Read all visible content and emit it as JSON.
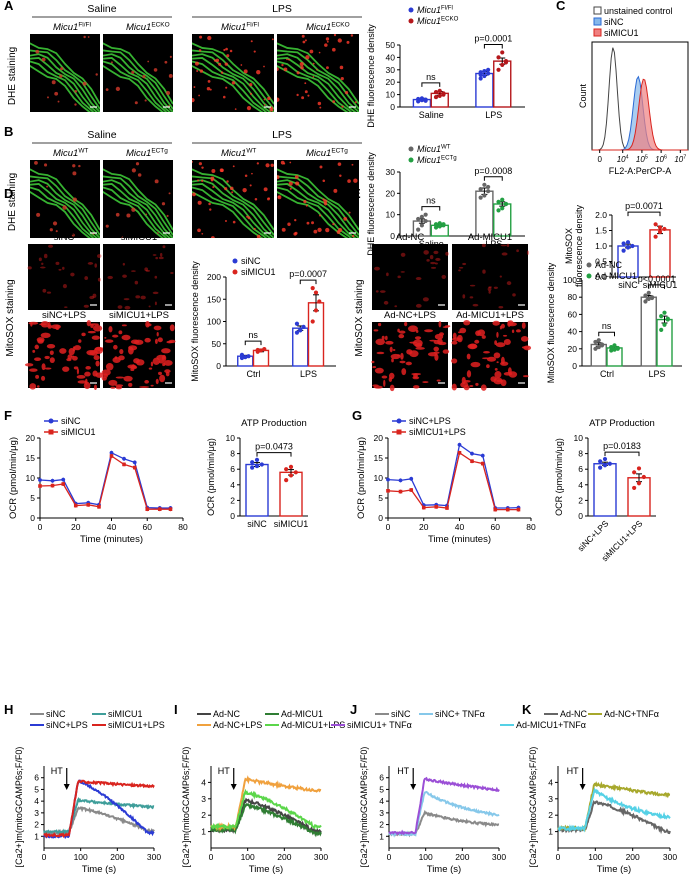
{
  "panels": {
    "A": {
      "letter": "A",
      "row_label": "DHE staining",
      "group_left": "Saline",
      "group_right": "LPS",
      "images": [
        {
          "gene": "Micu1",
          "sup": "Fl/Fl"
        },
        {
          "gene": "Micu1",
          "sup": "ECKO"
        },
        {
          "gene": "Micu1",
          "sup": "Fl/Fl"
        },
        {
          "gene": "Micu1",
          "sup": "ECKO"
        }
      ]
    },
    "B": {
      "letter": "B",
      "row_label": "DHE staining",
      "group_left": "Saline",
      "group_right": "LPS",
      "images": [
        {
          "gene": "Micu1",
          "sup": "WT"
        },
        {
          "gene": "Micu1",
          "sup": "ECTg"
        },
        {
          "gene": "Micu1",
          "sup": "WT"
        },
        {
          "gene": "Micu1",
          "sup": "ECTg"
        }
      ]
    },
    "C": {
      "letter": "C"
    },
    "D": {
      "letter": "D",
      "row_label": "MitoSOX staining",
      "images": [
        "siNC",
        "siMICU1",
        "siNC+LPS",
        "siMICU1+LPS"
      ]
    },
    "E": {
      "letter": "E",
      "row_label": "MitoSOX staining",
      "images": [
        "Ad-NC",
        "Ad-MICU1",
        "Ad-NC+LPS",
        "Ad-MICU1+LPS"
      ]
    },
    "F": {
      "letter": "F"
    },
    "G": {
      "letter": "G"
    },
    "H": {
      "letter": "H"
    },
    "I": {
      "letter": "I"
    },
    "J": {
      "letter": "J"
    },
    "K": {
      "letter": "K"
    }
  },
  "colors": {
    "blue": "#2b3bd4",
    "red": "#d9241e",
    "dark_red": "#b5171b",
    "green": "#23a043",
    "gray": "#8a8a8a",
    "darkgray": "#444444",
    "orange": "#f0a13e",
    "light_green": "#5bd64a",
    "teal": "#3f9e9a",
    "lightblue": "#86c8ea",
    "purple": "#9b4fd6",
    "olive": "#a7a82c",
    "cyan": "#55d1e6",
    "dark_green": "#2f7d33"
  },
  "chart_data": [
    {
      "id": "A_bar",
      "type": "bar",
      "ylabel": "DHE fluorescence density",
      "categories": [
        "Saline",
        "LPS"
      ],
      "ylim": [
        0,
        50
      ],
      "yticks": [
        0,
        10,
        20,
        30,
        40,
        50
      ],
      "series": [
        {
          "name": "Micu1",
          "sup": "Fl/Fl",
          "color": "#2b3bd4",
          "values": [
            6,
            27
          ],
          "errors": [
            1,
            1.5
          ],
          "points": [
            [
              4.5,
              5.5,
              6,
              6.5,
              7,
              5
            ],
            [
              23,
              25,
              27,
              28,
              29,
              30,
              26
            ]
          ]
        },
        {
          "name": "Micu1",
          "sup": "ECKO",
          "color": "#b5171b",
          "values": [
            11,
            37
          ],
          "errors": [
            1.5,
            2.5
          ],
          "points": [
            [
              8,
              9,
              11,
              12,
              13,
              10
            ],
            [
              30,
              34,
              37,
              40,
              44,
              36
            ]
          ]
        }
      ],
      "comparisons": [
        {
          "label": "ns",
          "group": 0
        },
        {
          "label": "p=0.0001",
          "group": 1
        }
      ]
    },
    {
      "id": "B_bar",
      "type": "bar",
      "ylabel": "DHE fluorescence density",
      "categories": [
        "Saline",
        "LPS"
      ],
      "ylim": [
        0,
        30
      ],
      "yticks": [
        0,
        10,
        20,
        30
      ],
      "series": [
        {
          "name": "Micu1",
          "sup": "WT",
          "color": "#666666",
          "values": [
            7,
            21
          ],
          "errors": [
            1,
            1.5
          ],
          "points": [
            [
              3,
              5,
              7,
              8,
              9,
              10
            ],
            [
              18,
              19,
              21,
              22,
              24,
              23
            ]
          ]
        },
        {
          "name": "Micu1",
          "sup": "ECTg",
          "color": "#23a043",
          "values": [
            5,
            15
          ],
          "errors": [
            0.5,
            1
          ],
          "points": [
            [
              4,
              4.5,
              5,
              5.5,
              6,
              5.5
            ],
            [
              12,
              13,
              15,
              16,
              17,
              15
            ]
          ]
        }
      ],
      "comparisons": [
        {
          "label": "ns",
          "group": 0
        },
        {
          "label": "p=0.0008",
          "group": 1
        }
      ]
    },
    {
      "id": "C_hist",
      "type": "area",
      "xlabel": "FL2-A:PerCP-A",
      "ylabel": "Count",
      "xticks": [
        "0",
        "10^4",
        "10^5",
        "10^6",
        "10^7"
      ],
      "series": [
        {
          "name": "unstained control",
          "color": "#444444",
          "fill": "none",
          "peak": 0.22,
          "width": 0.06,
          "height": 0.95
        },
        {
          "name": "siNC",
          "color": "#2b6ad4",
          "fill": "#86b8ea",
          "peak": 0.48,
          "width": 0.07,
          "height": 0.68
        },
        {
          "name": "siMICU1",
          "color": "#d9241e",
          "fill": "#f08080",
          "peak": 0.54,
          "width": 0.075,
          "height": 0.66
        }
      ]
    },
    {
      "id": "C_bar",
      "type": "bar",
      "ylabel": "MitoSOX\nfluorescence density",
      "categories": [
        "siNC",
        "siMICU1"
      ],
      "ylim": [
        0,
        2.0
      ],
      "yticks": [
        0,
        0.5,
        1.0,
        1.5,
        2.0
      ],
      "series": [
        {
          "name": "",
          "color": "#2b3bd4",
          "values": [
            1.0,
            1.52
          ],
          "errors": [
            0.06,
            0.12
          ],
          "points": [
            [
              0.85,
              0.95,
              1.0,
              1.08,
              1.12
            ],
            [
              1.3,
              1.45,
              1.55,
              1.7,
              1.6
            ]
          ]
        }
      ],
      "colors_by_category": [
        "#2b3bd4",
        "#d9241e"
      ],
      "comparisons": [
        {
          "label": "p=0.0071",
          "group": "all"
        }
      ]
    },
    {
      "id": "D_bar",
      "type": "bar",
      "ylabel": "MitoSOX fluorescence density",
      "categories": [
        "Ctrl",
        "LPS"
      ],
      "ylim": [
        0,
        200
      ],
      "yticks": [
        0,
        50,
        100,
        150,
        200
      ],
      "series": [
        {
          "name": "siNC",
          "color": "#2b3bd4",
          "values": [
            22,
            85
          ],
          "errors": [
            2,
            5
          ],
          "points": [
            [
              18,
              20,
              22,
              25
            ],
            [
              75,
              80,
              88,
              95,
              82
            ]
          ]
        },
        {
          "name": "siMICU1",
          "color": "#d9241e",
          "values": [
            35,
            142
          ],
          "errors": [
            3,
            18
          ],
          "points": [
            [
              32,
              35,
              38,
              36
            ],
            [
              100,
              125,
              145,
              175,
              165
            ]
          ]
        }
      ],
      "comparisons": [
        {
          "label": "ns",
          "group": 0
        },
        {
          "label": "p=0.0007",
          "group": 1
        }
      ]
    },
    {
      "id": "E_bar",
      "type": "bar",
      "ylabel": "MitoSOX fluorescence density",
      "categories": [
        "Ctrl",
        "LPS"
      ],
      "ylim": [
        0,
        100
      ],
      "yticks": [
        0,
        20,
        40,
        60,
        80,
        100
      ],
      "series": [
        {
          "name": "Ad-NC",
          "color": "#666666",
          "values": [
            25,
            80
          ],
          "errors": [
            2,
            2
          ],
          "points": [
            [
              20,
              22,
              25,
              28,
              30,
              24
            ],
            [
              75,
              78,
              80,
              82,
              85,
              79
            ]
          ]
        },
        {
          "name": "Ad-MICU1",
          "color": "#23a043",
          "values": [
            21,
            54
          ],
          "errors": [
            1.5,
            4
          ],
          "points": [
            [
              18,
              19,
              21,
              22,
              24,
              20
            ],
            [
              42,
              48,
              54,
              58,
              62,
              55
            ]
          ]
        }
      ],
      "comparisons": [
        {
          "label": "ns",
          "group": 0
        },
        {
          "label": "p<0.0001",
          "group": 1
        }
      ]
    },
    {
      "id": "F_line",
      "type": "line",
      "xlabel": "Time (minutes)",
      "ylabel": "OCR (pmol/min/μg)",
      "xlim": [
        0,
        80
      ],
      "ylim": [
        0,
        20
      ],
      "xticks": [
        0,
        20,
        40,
        60,
        80
      ],
      "yticks": [
        0,
        5,
        10,
        15,
        20
      ],
      "x": [
        0,
        7,
        13,
        20,
        27,
        33,
        40,
        47,
        53,
        60,
        67,
        73
      ],
      "series": [
        {
          "name": "siNC",
          "color": "#2b3bd4",
          "marker": "circle",
          "values": [
            9.5,
            9.3,
            9.6,
            3.6,
            3.8,
            3.3,
            16.3,
            14.8,
            13.9,
            2.6,
            2.5,
            2.5
          ]
        },
        {
          "name": "siMICU1",
          "color": "#d9241e",
          "marker": "square",
          "values": [
            8.0,
            8.1,
            8.5,
            3.1,
            3.3,
            2.8,
            15.5,
            13.4,
            12.6,
            2.2,
            2.2,
            2.2
          ]
        }
      ]
    },
    {
      "id": "F_bar",
      "type": "bar",
      "title": "ATP Production",
      "ylabel": "OCR (pmol/min/μg)",
      "categories": [
        "siNC",
        "siMICU1"
      ],
      "ylim": [
        0,
        10
      ],
      "yticks": [
        0,
        2,
        4,
        6,
        8,
        10
      ],
      "series": [
        {
          "name": "",
          "color": "#2b3bd4",
          "values": [
            6.6,
            5.6
          ],
          "errors": [
            0.25,
            0.35
          ],
          "points": [
            [
              6.2,
              6.4,
              6.6,
              6.9,
              7.2
            ],
            [
              4.6,
              5.2,
              5.6,
              6.0,
              6.3
            ]
          ]
        }
      ],
      "colors_by_category": [
        "#2b3bd4",
        "#d9241e"
      ],
      "comparisons": [
        {
          "label": "p=0.0473",
          "group": "all"
        }
      ]
    },
    {
      "id": "G_line",
      "type": "line",
      "xlabel": "Time (minutes)",
      "ylabel": "OCR (pmol/min/μg)",
      "xlim": [
        0,
        80
      ],
      "ylim": [
        0,
        20
      ],
      "xticks": [
        0,
        20,
        40,
        60,
        80
      ],
      "yticks": [
        0,
        5,
        10,
        15,
        20
      ],
      "x": [
        0,
        7,
        13,
        20,
        27,
        33,
        40,
        47,
        53,
        60,
        67,
        73
      ],
      "series": [
        {
          "name": "siNC+LPS",
          "color": "#2b3bd4",
          "marker": "circle",
          "values": [
            9.6,
            9.4,
            9.8,
            3.2,
            3.3,
            3.1,
            18.3,
            16.1,
            15.6,
            2.5,
            2.5,
            2.6
          ]
        },
        {
          "name": "siMICU1+LPS",
          "color": "#d9241e",
          "marker": "square",
          "values": [
            6.8,
            6.6,
            7.0,
            2.6,
            2.8,
            2.5,
            16.3,
            14.2,
            13.6,
            2.1,
            2.1,
            2.1
          ]
        }
      ]
    },
    {
      "id": "G_bar",
      "type": "bar",
      "title": "ATP Production",
      "ylabel": "OCR (pmol/min/μg)",
      "categories": [
        "siNC+LPS",
        "siMICU1+LPS"
      ],
      "ylim": [
        0,
        10
      ],
      "yticks": [
        0,
        2,
        4,
        6,
        8,
        10
      ],
      "series": [
        {
          "name": "",
          "color": "#2b3bd4",
          "values": [
            6.7,
            4.9
          ],
          "errors": [
            0.2,
            0.5
          ],
          "points": [
            [
              6.2,
              6.5,
              6.7,
              7.0,
              7.3
            ],
            [
              3.6,
              4.2,
              5.0,
              5.6,
              6.1
            ]
          ]
        }
      ],
      "colors_by_category": [
        "#2b3bd4",
        "#d9241e"
      ],
      "comparisons": [
        {
          "label": "p=0.0183",
          "group": "all"
        }
      ]
    },
    {
      "id": "H_trace",
      "type": "line",
      "xlabel": "Time (s)",
      "ylabel": "[Ca2+]m(mitoGCAMP6s;F/F0)",
      "xlim": [
        0,
        300
      ],
      "ylim": [
        0,
        7
      ],
      "xticks": [
        0,
        100,
        200,
        300
      ],
      "yticks": [
        1,
        2,
        3,
        4,
        5,
        6
      ],
      "annotation": "HT",
      "series": [
        {
          "name": "siNC",
          "color": "#8a8a8a",
          "base": 1.3,
          "peak": 3.4,
          "end": 1.5,
          "rise": 68,
          "decay": "fast"
        },
        {
          "name": "siMICU1",
          "color": "#3f9e9a",
          "base": 1.4,
          "peak": 4.1,
          "end": 2.5,
          "rise": 68,
          "decay": "slow"
        },
        {
          "name": "siNC+LPS",
          "color": "#2b3bd4",
          "base": 1.0,
          "peak": 5.7,
          "end": 1.3,
          "rise": 68,
          "decay": "fast"
        },
        {
          "name": "siMICU1+LPS",
          "color": "#d9241e",
          "base": 1.1,
          "peak": 5.7,
          "end": 4.6,
          "rise": 68,
          "decay": "slow"
        }
      ]
    },
    {
      "id": "I_trace",
      "type": "line",
      "xlabel": "Time (s)",
      "ylabel": "[Ca2+]m(mitoGCAMP6s;F/F0)",
      "xlim": [
        0,
        300
      ],
      "ylim": [
        0,
        5
      ],
      "xticks": [
        0,
        100,
        200,
        300
      ],
      "yticks": [
        1,
        2,
        3,
        4
      ],
      "annotation": "HT",
      "series": [
        {
          "name": "Ad-NC",
          "color": "#444444",
          "base": 1.1,
          "peak": 2.9,
          "end": 1.0,
          "rise": 68,
          "decay": "fast"
        },
        {
          "name": "Ad-MICU1",
          "color": "#2f7d33",
          "base": 1.1,
          "peak": 2.6,
          "end": 0.9,
          "rise": 68,
          "decay": "fast"
        },
        {
          "name": "Ad-NC+LPS",
          "color": "#f0a13e",
          "base": 1.3,
          "peak": 4.2,
          "end": 2.3,
          "rise": 68,
          "decay": "slow"
        },
        {
          "name": "Ad-MICU1+LPS",
          "color": "#5bd64a",
          "base": 1.3,
          "peak": 3.4,
          "end": 1.3,
          "rise": 68,
          "decay": "fast"
        }
      ]
    },
    {
      "id": "J_trace",
      "type": "line",
      "xlabel": "Time (s)",
      "ylabel": "[Ca2+]m(mitoGCAMP6s;F/F0)",
      "xlim": [
        0,
        300
      ],
      "ylim": [
        0,
        7
      ],
      "xticks": [
        0,
        100,
        200,
        300
      ],
      "yticks": [
        1,
        2,
        3,
        4,
        5,
        6
      ],
      "annotation": "HT",
      "series": [
        {
          "name": "siNC",
          "color": "#8a8a8a",
          "base": 1.2,
          "peak": 3.0,
          "end": 1.6,
          "rise": 72,
          "decay": "mid"
        },
        {
          "name": "siNC+ TNFα",
          "color": "#86c8ea",
          "base": 1.2,
          "peak": 4.8,
          "end": 2.1,
          "rise": 72,
          "decay": "mid"
        },
        {
          "name": "siMICU1+ TNFα",
          "color": "#9b4fd6",
          "base": 1.3,
          "peak": 5.9,
          "end": 3.4,
          "rise": 72,
          "decay": "slow"
        }
      ]
    },
    {
      "id": "K_trace",
      "type": "line",
      "xlabel": "Time (s)",
      "ylabel": "[Ca2+]m(mitoGCAMP6s;F/F0)",
      "xlim": [
        0,
        300
      ],
      "ylim": [
        0,
        5
      ],
      "xticks": [
        0,
        100,
        200,
        300
      ],
      "yticks": [
        1,
        2,
        3,
        4
      ],
      "annotation": "HT",
      "series": [
        {
          "name": "Ad-NC",
          "color": "#666666",
          "base": 1.1,
          "peak": 2.8,
          "end": 1.0,
          "rise": 72,
          "decay": "fast"
        },
        {
          "name": "Ad-NC+TNFα",
          "color": "#a7a82c",
          "base": 1.2,
          "peak": 3.9,
          "end": 2.1,
          "rise": 72,
          "decay": "slow"
        },
        {
          "name": "Ad-MICU1+TNFα",
          "color": "#55d1e6",
          "base": 1.2,
          "peak": 3.5,
          "end": 1.3,
          "rise": 72,
          "decay": "mid"
        }
      ]
    }
  ]
}
